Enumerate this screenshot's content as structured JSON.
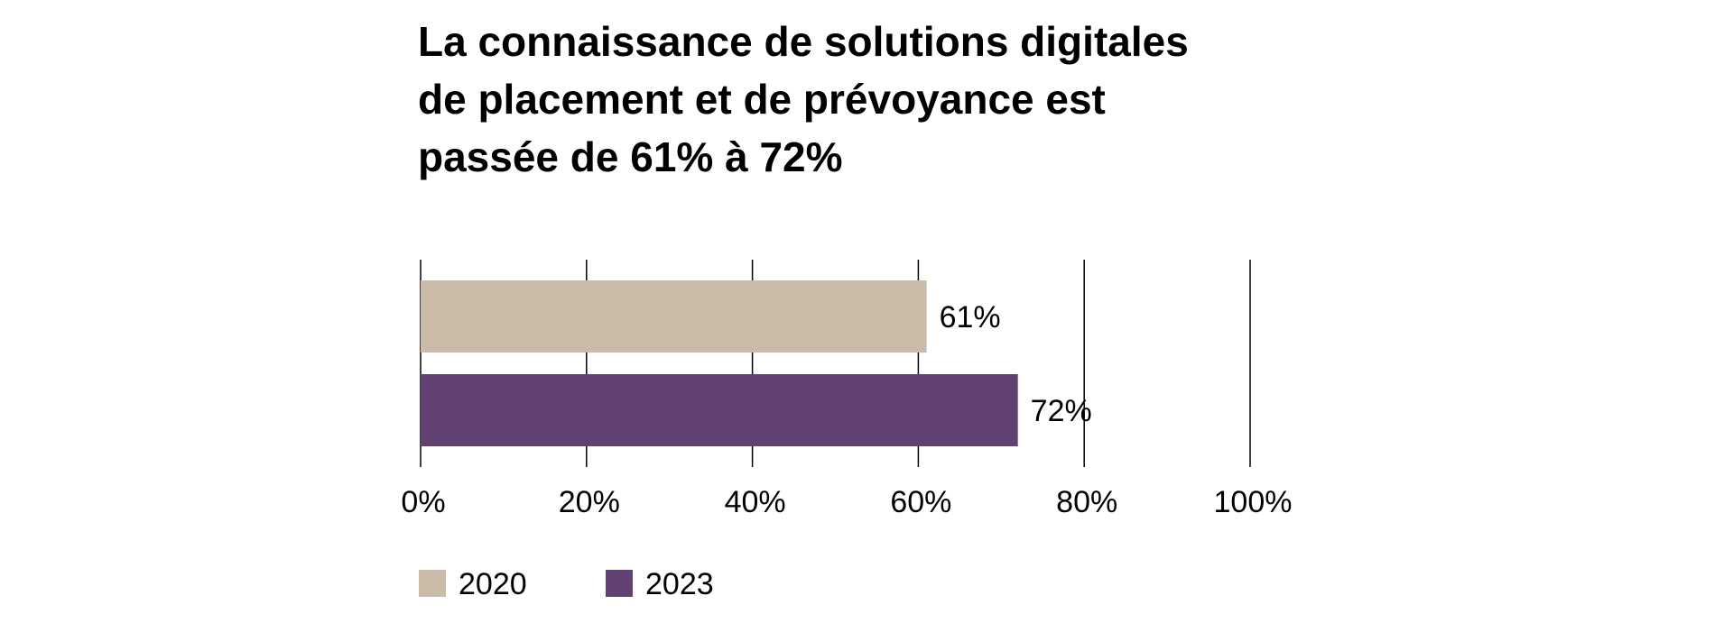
{
  "chart_data": {
    "type": "bar",
    "orientation": "horizontal",
    "title_lines": [
      "La connaissance de solutions digitales",
      "de placement et de prévoyance est",
      "passée de 61% à 72%"
    ],
    "categories": [
      "2020",
      "2023"
    ],
    "values": [
      61,
      72
    ],
    "data_labels": [
      "61%",
      "72%"
    ],
    "xlim": [
      0,
      100
    ],
    "xticks": [
      0,
      20,
      40,
      60,
      80,
      100
    ],
    "xtick_labels": [
      "0%",
      "20%",
      "40%",
      "60%",
      "80%",
      "100%"
    ],
    "grid": true,
    "legend": {
      "placement": "bottom-left",
      "entries": [
        "2020",
        "2023"
      ]
    },
    "colors": [
      "#cbbcaa",
      "#614172"
    ]
  }
}
